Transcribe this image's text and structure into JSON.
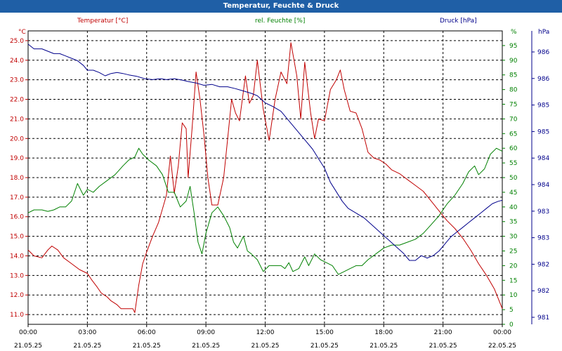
{
  "window": {
    "title": "Temperatur, Feuchte & Druck"
  },
  "colors": {
    "temperature": "#c00000",
    "humidity": "#008000",
    "pressure": "#00008b",
    "titlebar": "#1f5fa6"
  },
  "chart_data": {
    "type": "line",
    "legend": {
      "temperature": "Temperatur [°C]",
      "humidity": "rel. Feuchte [%]",
      "pressure": "Druck [hPa]"
    },
    "units": {
      "temperature": "°C",
      "humidity": "%",
      "pressure": "hPa"
    },
    "x_ticks": [
      {
        "time": "00:00",
        "date": "21.05.25"
      },
      {
        "time": "03:00",
        "date": "21.05.25"
      },
      {
        "time": "06:00",
        "date": "21.05.25"
      },
      {
        "time": "09:00",
        "date": "21.05.25"
      },
      {
        "time": "12:00",
        "date": "21.05.25"
      },
      {
        "time": "15:00",
        "date": "21.05.25"
      },
      {
        "time": "18:00",
        "date": "21.05.25"
      },
      {
        "time": "21:00",
        "date": "21.05.25"
      },
      {
        "time": "00:00",
        "date": "22.05.25"
      }
    ],
    "x_range_hours": [
      0,
      24
    ],
    "temperature_axis": {
      "min": 10.5,
      "max": 25.5,
      "ticks": [
        "25.0",
        "24.0",
        "23.0",
        "22.0",
        "21.0",
        "20.0",
        "19.0",
        "18.0",
        "17.0",
        "16.0",
        "15.0",
        "14.0",
        "13.0",
        "12.0",
        "11.0"
      ]
    },
    "humidity_axis": {
      "min": 0,
      "max": 100,
      "ticks": [
        "95",
        "90",
        "85",
        "80",
        "75",
        "70",
        "65",
        "60",
        "55",
        "50",
        "45",
        "40",
        "35",
        "30",
        "25",
        "20",
        "15",
        "10",
        "5",
        "0"
      ]
    },
    "pressure_axis": {
      "min": 980.5,
      "max": 986.7,
      "ticks": [
        "986",
        "986",
        "985",
        "985",
        "984",
        "984",
        "983",
        "983",
        "982",
        "982",
        "981"
      ]
    },
    "grid": true,
    "series": [
      {
        "name": "Temperatur [°C]",
        "axis": "temperature",
        "points": [
          [
            0,
            14.3
          ],
          [
            0.3,
            14.0
          ],
          [
            0.7,
            13.9
          ],
          [
            1.0,
            14.3
          ],
          [
            1.2,
            14.5
          ],
          [
            1.5,
            14.3
          ],
          [
            1.8,
            13.9
          ],
          [
            2.2,
            13.6
          ],
          [
            2.6,
            13.3
          ],
          [
            3.0,
            13.1
          ],
          [
            3.2,
            12.8
          ],
          [
            3.5,
            12.4
          ],
          [
            3.7,
            12.1
          ],
          [
            4.0,
            11.9
          ],
          [
            4.2,
            11.7
          ],
          [
            4.5,
            11.5
          ],
          [
            4.7,
            11.3
          ],
          [
            5.0,
            11.3
          ],
          [
            5.3,
            11.3
          ],
          [
            5.4,
            11.1
          ],
          [
            5.6,
            12.5
          ],
          [
            5.8,
            13.6
          ],
          [
            6.0,
            14.2
          ],
          [
            6.3,
            15.0
          ],
          [
            6.6,
            15.7
          ],
          [
            7.0,
            17.1
          ],
          [
            7.2,
            19.1
          ],
          [
            7.4,
            17.2
          ],
          [
            7.6,
            18.6
          ],
          [
            7.8,
            20.8
          ],
          [
            8.0,
            20.5
          ],
          [
            8.1,
            18.0
          ],
          [
            8.3,
            20.5
          ],
          [
            8.5,
            23.4
          ],
          [
            8.7,
            22.0
          ],
          [
            8.9,
            20.2
          ],
          [
            9.1,
            18.0
          ],
          [
            9.3,
            16.6
          ],
          [
            9.6,
            16.6
          ],
          [
            9.9,
            18.0
          ],
          [
            10.1,
            20.0
          ],
          [
            10.3,
            22.0
          ],
          [
            10.5,
            21.3
          ],
          [
            10.7,
            20.9
          ],
          [
            11.0,
            23.2
          ],
          [
            11.2,
            21.8
          ],
          [
            11.4,
            22.2
          ],
          [
            11.6,
            24.0
          ],
          [
            11.9,
            21.5
          ],
          [
            12.2,
            19.9
          ],
          [
            12.5,
            22.0
          ],
          [
            12.8,
            23.4
          ],
          [
            13.1,
            22.8
          ],
          [
            13.3,
            24.9
          ],
          [
            13.6,
            23.2
          ],
          [
            13.8,
            21.0
          ],
          [
            14.0,
            23.9
          ],
          [
            14.3,
            21.3
          ],
          [
            14.5,
            20.0
          ],
          [
            14.7,
            21.0
          ],
          [
            15.0,
            20.9
          ],
          [
            15.3,
            22.5
          ],
          [
            15.6,
            23.0
          ],
          [
            15.8,
            23.5
          ],
          [
            16.0,
            22.5
          ],
          [
            16.3,
            21.4
          ],
          [
            16.6,
            21.3
          ],
          [
            16.9,
            20.5
          ],
          [
            17.2,
            19.3
          ],
          [
            17.5,
            19.0
          ],
          [
            17.8,
            18.9
          ],
          [
            18.1,
            18.7
          ],
          [
            18.4,
            18.4
          ],
          [
            18.8,
            18.2
          ],
          [
            19.2,
            17.9
          ],
          [
            19.6,
            17.6
          ],
          [
            20.0,
            17.3
          ],
          [
            20.4,
            16.8
          ],
          [
            20.8,
            16.3
          ],
          [
            21.2,
            15.8
          ],
          [
            21.6,
            15.4
          ],
          [
            22.0,
            14.9
          ],
          [
            22.4,
            14.3
          ],
          [
            22.8,
            13.6
          ],
          [
            23.2,
            13.0
          ],
          [
            23.6,
            12.3
          ],
          [
            24.0,
            11.3
          ]
        ]
      },
      {
        "name": "rel. Feuchte [%]",
        "axis": "humidity",
        "points": [
          [
            0,
            38
          ],
          [
            0.3,
            39
          ],
          [
            0.7,
            39
          ],
          [
            1.0,
            38.5
          ],
          [
            1.3,
            39
          ],
          [
            1.6,
            40
          ],
          [
            1.9,
            40
          ],
          [
            2.2,
            42
          ],
          [
            2.5,
            48
          ],
          [
            2.8,
            44
          ],
          [
            3.0,
            46
          ],
          [
            3.3,
            45
          ],
          [
            3.6,
            47
          ],
          [
            4.0,
            49
          ],
          [
            4.4,
            51
          ],
          [
            4.8,
            54
          ],
          [
            5.1,
            56
          ],
          [
            5.4,
            57
          ],
          [
            5.6,
            60
          ],
          [
            5.8,
            58
          ],
          [
            6.1,
            56
          ],
          [
            6.5,
            54
          ],
          [
            6.8,
            51
          ],
          [
            7.1,
            45
          ],
          [
            7.4,
            45
          ],
          [
            7.7,
            40
          ],
          [
            8.0,
            42
          ],
          [
            8.2,
            47
          ],
          [
            8.4,
            38
          ],
          [
            8.6,
            28
          ],
          [
            8.8,
            24
          ],
          [
            9.0,
            31
          ],
          [
            9.3,
            38
          ],
          [
            9.6,
            40
          ],
          [
            9.9,
            37
          ],
          [
            10.2,
            33
          ],
          [
            10.4,
            28
          ],
          [
            10.6,
            26
          ],
          [
            10.9,
            30
          ],
          [
            11.1,
            25
          ],
          [
            11.3,
            24
          ],
          [
            11.6,
            22
          ],
          [
            11.9,
            18
          ],
          [
            12.2,
            20
          ],
          [
            12.5,
            20
          ],
          [
            12.8,
            20
          ],
          [
            13.0,
            19
          ],
          [
            13.2,
            21
          ],
          [
            13.4,
            18
          ],
          [
            13.7,
            19
          ],
          [
            14.0,
            23
          ],
          [
            14.2,
            20
          ],
          [
            14.5,
            24
          ],
          [
            14.8,
            22
          ],
          [
            15.1,
            21
          ],
          [
            15.4,
            20
          ],
          [
            15.7,
            17
          ],
          [
            16.0,
            18
          ],
          [
            16.3,
            19
          ],
          [
            16.6,
            20
          ],
          [
            16.9,
            20
          ],
          [
            17.2,
            22
          ],
          [
            17.6,
            24
          ],
          [
            18.0,
            26
          ],
          [
            18.4,
            27
          ],
          [
            18.8,
            27
          ],
          [
            19.2,
            28
          ],
          [
            19.6,
            29
          ],
          [
            20.0,
            31
          ],
          [
            20.4,
            34
          ],
          [
            20.8,
            37
          ],
          [
            21.2,
            41
          ],
          [
            21.6,
            44
          ],
          [
            22.0,
            48
          ],
          [
            22.3,
            52
          ],
          [
            22.6,
            54
          ],
          [
            22.8,
            51
          ],
          [
            23.1,
            53
          ],
          [
            23.4,
            58
          ],
          [
            23.7,
            60
          ],
          [
            24.0,
            59
          ]
        ]
      },
      {
        "name": "Druck [hPa]",
        "axis": "pressure",
        "points": [
          [
            0,
            986.42
          ],
          [
            0.3,
            986.32
          ],
          [
            0.7,
            986.32
          ],
          [
            1.0,
            986.27
          ],
          [
            1.3,
            986.22
          ],
          [
            1.6,
            986.22
          ],
          [
            1.9,
            986.17
          ],
          [
            2.2,
            986.12
          ],
          [
            2.5,
            986.07
          ],
          [
            2.8,
            985.97
          ],
          [
            3.0,
            985.87
          ],
          [
            3.3,
            985.87
          ],
          [
            3.6,
            985.82
          ],
          [
            3.9,
            985.75
          ],
          [
            4.2,
            985.8
          ],
          [
            4.5,
            985.82
          ],
          [
            4.8,
            985.8
          ],
          [
            5.1,
            985.77
          ],
          [
            5.5,
            985.74
          ],
          [
            5.9,
            985.69
          ],
          [
            6.3,
            985.67
          ],
          [
            6.7,
            985.69
          ],
          [
            7.0,
            985.67
          ],
          [
            7.4,
            985.69
          ],
          [
            7.8,
            985.66
          ],
          [
            8.1,
            985.63
          ],
          [
            8.5,
            985.6
          ],
          [
            8.9,
            985.55
          ],
          [
            9.3,
            985.57
          ],
          [
            9.7,
            985.52
          ],
          [
            10.1,
            985.52
          ],
          [
            10.5,
            985.48
          ],
          [
            10.9,
            985.43
          ],
          [
            11.3,
            985.38
          ],
          [
            11.6,
            985.33
          ],
          [
            12.0,
            985.18
          ],
          [
            12.4,
            985.1
          ],
          [
            12.8,
            985.0
          ],
          [
            13.2,
            984.8
          ],
          [
            13.6,
            984.6
          ],
          [
            14.0,
            984.4
          ],
          [
            14.4,
            984.2
          ],
          [
            14.7,
            984.0
          ],
          [
            15.0,
            983.8
          ],
          [
            15.3,
            983.5
          ],
          [
            15.6,
            983.3
          ],
          [
            15.9,
            983.1
          ],
          [
            16.2,
            982.95
          ],
          [
            16.6,
            982.85
          ],
          [
            17.0,
            982.75
          ],
          [
            17.4,
            982.6
          ],
          [
            17.8,
            982.45
          ],
          [
            18.2,
            982.3
          ],
          [
            18.6,
            982.15
          ],
          [
            19.0,
            982.0
          ],
          [
            19.3,
            981.85
          ],
          [
            19.6,
            981.85
          ],
          [
            19.9,
            981.95
          ],
          [
            20.2,
            981.9
          ],
          [
            20.5,
            981.95
          ],
          [
            20.8,
            982.05
          ],
          [
            21.1,
            982.2
          ],
          [
            21.4,
            982.35
          ],
          [
            21.7,
            982.45
          ],
          [
            22.0,
            982.55
          ],
          [
            22.3,
            982.65
          ],
          [
            22.6,
            982.75
          ],
          [
            22.9,
            982.85
          ],
          [
            23.2,
            982.95
          ],
          [
            23.5,
            983.05
          ],
          [
            23.8,
            983.1
          ],
          [
            24.0,
            983.12
          ]
        ]
      }
    ]
  }
}
